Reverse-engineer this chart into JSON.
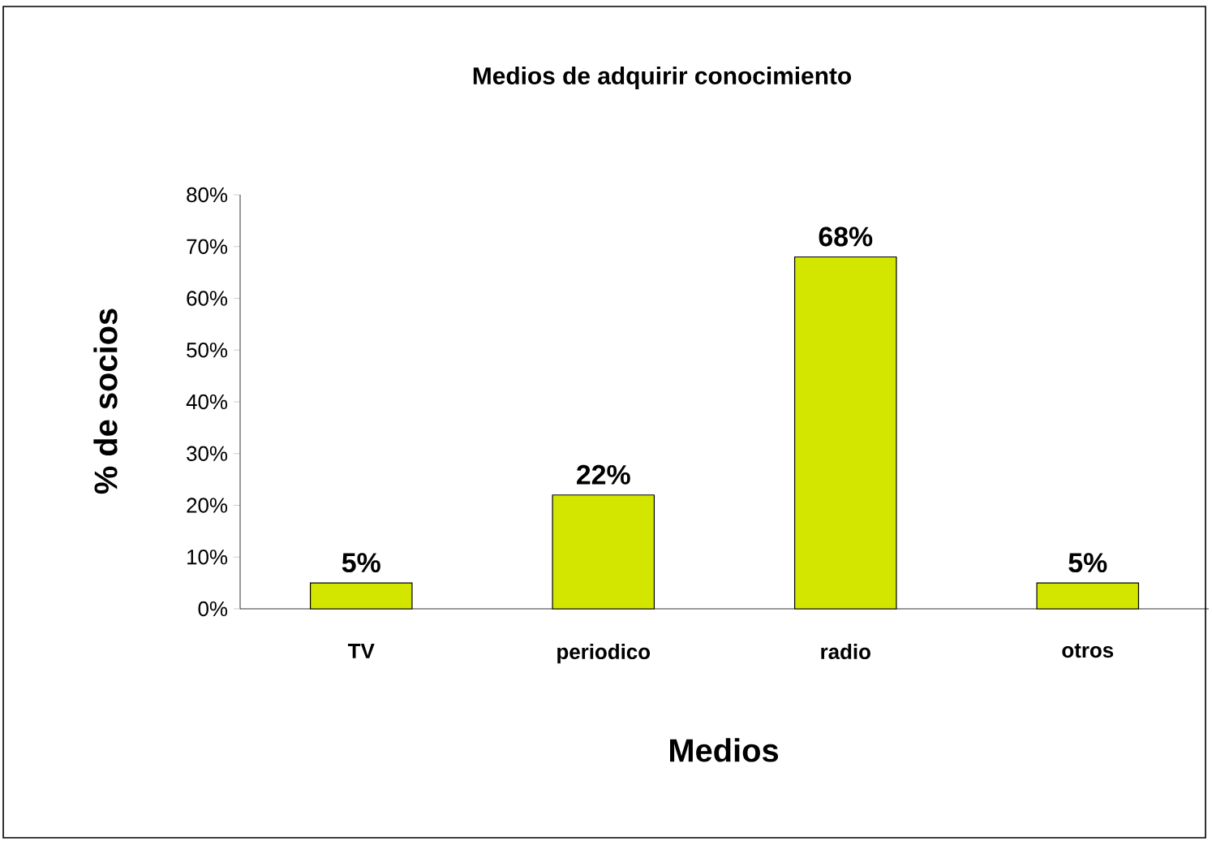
{
  "chart_data": {
    "type": "bar",
    "title": "Medios de adquirir conocimiento",
    "xlabel": "Medios",
    "ylabel": "% de socios",
    "categories": [
      "TV",
      "periodico",
      "radio",
      "otros"
    ],
    "values": [
      5,
      22,
      68,
      5
    ],
    "value_labels": [
      "5%",
      "22%",
      "68%",
      "5%"
    ],
    "color": "#d2e600",
    "ylim": [
      0,
      80
    ],
    "yticks": [
      {
        "value": 0,
        "label": "0%"
      },
      {
        "value": 10,
        "label": "10%"
      },
      {
        "value": 20,
        "label": "20%"
      },
      {
        "value": 30,
        "label": "30%"
      },
      {
        "value": 40,
        "label": "40%"
      },
      {
        "value": 50,
        "label": "50%"
      },
      {
        "value": 60,
        "label": "60%"
      },
      {
        "value": 70,
        "label": "70%"
      },
      {
        "value": 80,
        "label": "80%"
      }
    ],
    "grid": false
  }
}
